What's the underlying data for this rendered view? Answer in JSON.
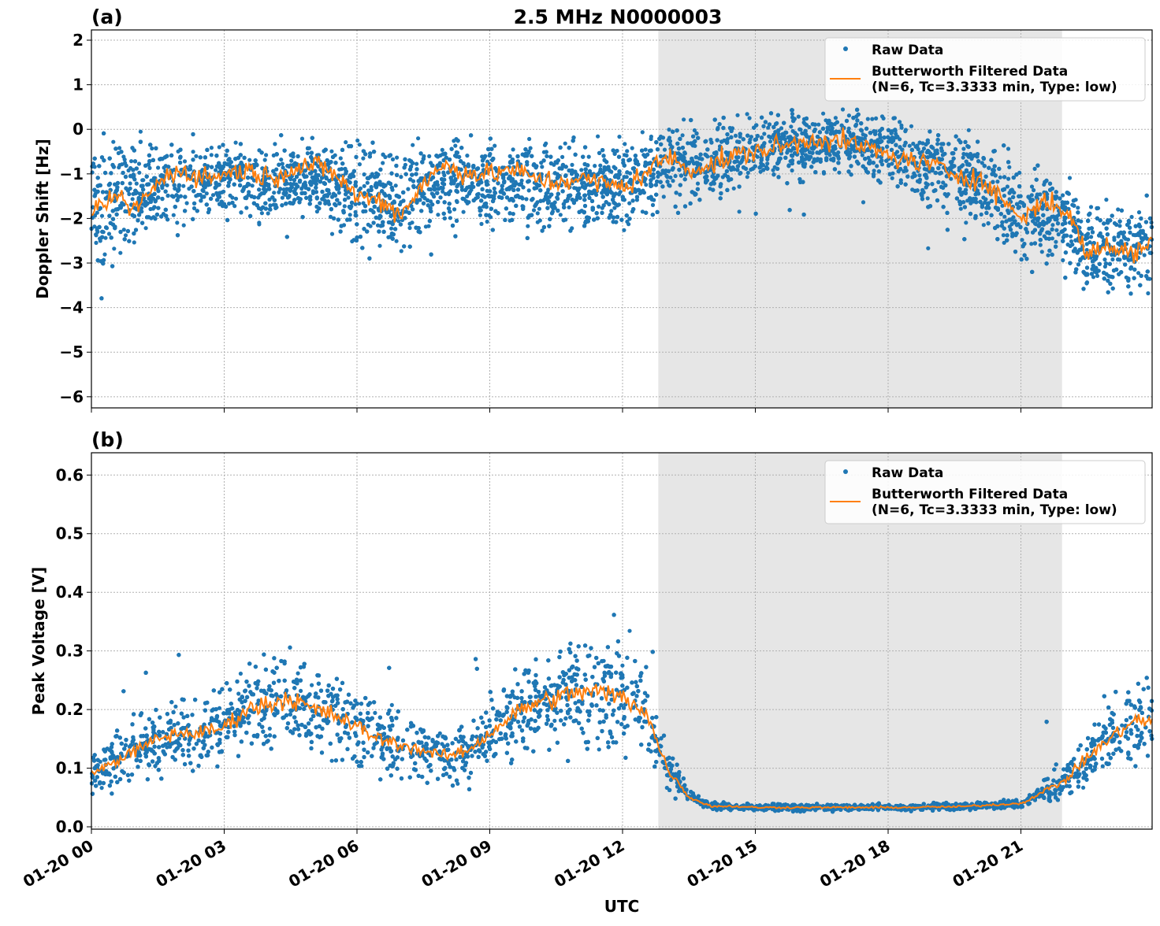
{
  "title": "2.5 MHz N0000003",
  "chart_data": [
    {
      "panel_label": "(a)",
      "type": "scatter+line",
      "ylabel": "Doppler Shift [Hz]",
      "xlabel": "",
      "ylim": [
        -6.25,
        2.23
      ],
      "xlim_hours": [
        0,
        23.95
      ],
      "yticks": [
        "2",
        "1",
        "0",
        "−1",
        "−2",
        "−3",
        "−4",
        "−5",
        "−6"
      ],
      "ytick_values": [
        2,
        1,
        0,
        -1,
        -2,
        -3,
        -4,
        -5,
        -6
      ],
      "shaded_span_utc": [
        "01-20 12:48",
        "01-20 21:55"
      ],
      "grid": true,
      "legend": "top-right",
      "series": [
        {
          "name": "Raw Data",
          "color": "#1f77b4",
          "style": "points",
          "lower": [
            -3.8,
            -3.2,
            -3.0,
            -2.6,
            -2.3,
            -2.4,
            -2.3,
            -2.3,
            -2.5,
            -2.3,
            -2.2,
            -2.4,
            -3.0,
            -3.0,
            -3.4,
            -2.7,
            -2.4,
            -2.6,
            -2.6,
            -2.4,
            -2.5,
            -2.6,
            -2.5,
            -2.5,
            -2.6,
            -2.3,
            -2.0,
            -2.2,
            -1.9,
            -1.6,
            -1.5,
            -1.4,
            -1.3,
            -1.2,
            -1.3,
            -1.4,
            -1.6,
            -1.8,
            -2.0,
            -2.3,
            -2.5,
            -2.8,
            -3.4,
            -3.2,
            -3.4,
            -4.1,
            -4.0,
            -4.1,
            -3.9
          ]
        },
        {
          "name": "Butterworth Filtered Data\n(N=6, Tc=3.3333 min, Type: low)",
          "color": "#ff7f0e",
          "style": "line",
          "x_hours": [
            0,
            0.5,
            1,
            1.5,
            2,
            2.5,
            3,
            3.5,
            4,
            4.5,
            5,
            5.5,
            6,
            6.5,
            7,
            7.5,
            8,
            8.5,
            9,
            9.5,
            10,
            10.5,
            11,
            11.5,
            12,
            12.5,
            13,
            13.5,
            14,
            14.5,
            15,
            15.5,
            16,
            16.5,
            17,
            17.5,
            18,
            18.5,
            19,
            19.5,
            20,
            20.5,
            21,
            21.5,
            22,
            22.5,
            23,
            23.5,
            23.95
          ],
          "values": [
            -2.0,
            -1.5,
            -1.8,
            -1.2,
            -0.9,
            -1.1,
            -1.0,
            -0.9,
            -1.1,
            -0.9,
            -0.8,
            -1.0,
            -1.5,
            -1.6,
            -1.9,
            -1.2,
            -0.8,
            -1.0,
            -1.0,
            -0.9,
            -1.1,
            -1.2,
            -1.1,
            -1.2,
            -1.3,
            -1.0,
            -0.6,
            -0.9,
            -0.8,
            -0.6,
            -0.5,
            -0.4,
            -0.3,
            -0.2,
            -0.3,
            -0.4,
            -0.6,
            -0.7,
            -0.8,
            -1.0,
            -1.1,
            -1.5,
            -2.0,
            -1.6,
            -1.8,
            -2.8,
            -2.6,
            -2.8,
            -2.5
          ],
          "upper": [
            0.2,
            0.1,
            0.1,
            0.1,
            0.1,
            0.1,
            0.1,
            0.1,
            0.1,
            0.1,
            0.1,
            0.1,
            0.0,
            0.0,
            -0.1,
            0.1,
            0.1,
            0.1,
            0.1,
            0.1,
            0.1,
            0.1,
            0.1,
            0.1,
            0.1,
            0.3,
            0.5,
            0.3,
            0.4,
            0.5,
            0.6,
            0.6,
            0.7,
            0.7,
            0.7,
            0.6,
            0.6,
            0.5,
            0.4,
            0.3,
            0.2,
            0.0,
            -0.4,
            -0.2,
            -0.6,
            -1.3,
            -1.2,
            -1.4,
            -1.0
          ]
        }
      ]
    },
    {
      "panel_label": "(b)",
      "type": "scatter+line",
      "ylabel": "Peak Voltage [V]",
      "xlabel": "UTC",
      "ylim": [
        -0.004,
        0.638
      ],
      "xlim_hours": [
        0,
        23.95
      ],
      "yticks": [
        "0.6",
        "0.5",
        "0.4",
        "0.3",
        "0.2",
        "0.1",
        "0.0"
      ],
      "ytick_values": [
        0.6,
        0.5,
        0.4,
        0.3,
        0.2,
        0.1,
        0.0
      ],
      "xticks": [
        "01-20 00",
        "01-20 03",
        "01-20 06",
        "01-20 09",
        "01-20 12",
        "01-20 15",
        "01-20 18",
        "01-20 21"
      ],
      "shaded_span_utc": [
        "01-20 12:48",
        "01-20 21:55"
      ],
      "grid": true,
      "legend": "top-right",
      "series": [
        {
          "name": "Raw Data",
          "color": "#1f77b4",
          "style": "points"
        },
        {
          "name": "Butterworth Filtered Data\n(N=6, Tc=3.3333 min, Type: low)",
          "color": "#ff7f0e",
          "style": "line",
          "values": [
            0.09,
            0.11,
            0.13,
            0.15,
            0.16,
            0.16,
            0.17,
            0.2,
            0.21,
            0.22,
            0.2,
            0.19,
            0.17,
            0.15,
            0.14,
            0.13,
            0.12,
            0.13,
            0.16,
            0.19,
            0.21,
            0.22,
            0.23,
            0.23,
            0.22,
            0.2,
            0.1,
            0.05,
            0.035,
            0.035,
            0.033,
            0.033,
            0.033,
            0.033,
            0.033,
            0.033,
            0.033,
            0.033,
            0.034,
            0.034,
            0.036,
            0.038,
            0.04,
            0.06,
            0.08,
            0.12,
            0.15,
            0.18,
            0.18
          ]
        }
      ]
    }
  ]
}
